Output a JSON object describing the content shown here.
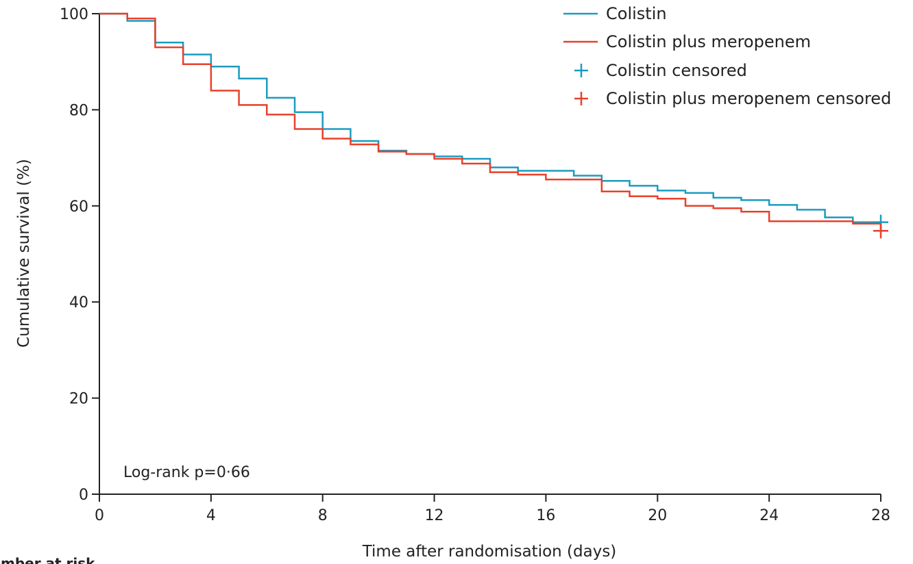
{
  "chart_data": {
    "type": "line",
    "step": true,
    "xlabel": "Time after randomisation (days)",
    "ylabel": "Cumulative survival (%)",
    "xlim": [
      0,
      28
    ],
    "ylim": [
      0,
      100
    ],
    "xticks": [
      0,
      4,
      8,
      12,
      16,
      20,
      24,
      28
    ],
    "yticks": [
      0,
      20,
      40,
      60,
      80,
      100
    ],
    "grid": false,
    "legend_position": "top-right",
    "annotation": "Log-rank p=0·66",
    "risk_table_label": "Number at risk",
    "series": [
      {
        "name": "Colistin",
        "color": "#1a9bc0",
        "censored_label": "Colistin censored",
        "x": [
          0,
          1,
          2,
          3,
          4,
          5,
          6,
          7,
          8,
          9,
          10,
          11,
          12,
          13,
          14,
          15,
          16,
          17,
          18,
          19,
          20,
          21,
          22,
          23,
          24,
          25,
          26,
          27,
          28
        ],
        "y": [
          100,
          98.5,
          94,
          91.5,
          89,
          86.5,
          82.5,
          79.5,
          76,
          73.5,
          71.5,
          70.8,
          70.3,
          69.8,
          68,
          67.3,
          67.3,
          66.3,
          65.2,
          64.2,
          63.2,
          62.7,
          61.7,
          61.2,
          60.2,
          59.2,
          57.6,
          56.6,
          56.6
        ],
        "censored": [
          {
            "x": 28,
            "y": 56.6
          }
        ]
      },
      {
        "name": "Colistin plus meropenem",
        "color": "#e8402a",
        "censored_label": "Colistin plus meropenem censored",
        "x": [
          0,
          1,
          2,
          3,
          4,
          5,
          6,
          7,
          8,
          9,
          10,
          11,
          12,
          13,
          14,
          15,
          16,
          17,
          18,
          19,
          20,
          21,
          22,
          23,
          24,
          25,
          26,
          27,
          28
        ],
        "y": [
          100,
          99,
          93,
          89.5,
          84,
          81,
          79,
          76,
          74,
          72.8,
          71.3,
          70.8,
          69.8,
          68.8,
          67,
          66.5,
          65.5,
          65.5,
          63,
          62,
          61.5,
          60,
          59.5,
          58.8,
          56.8,
          56.8,
          56.8,
          56.3,
          54.8
        ],
        "censored": [
          {
            "x": 28,
            "y": 54.8
          }
        ]
      }
    ]
  }
}
